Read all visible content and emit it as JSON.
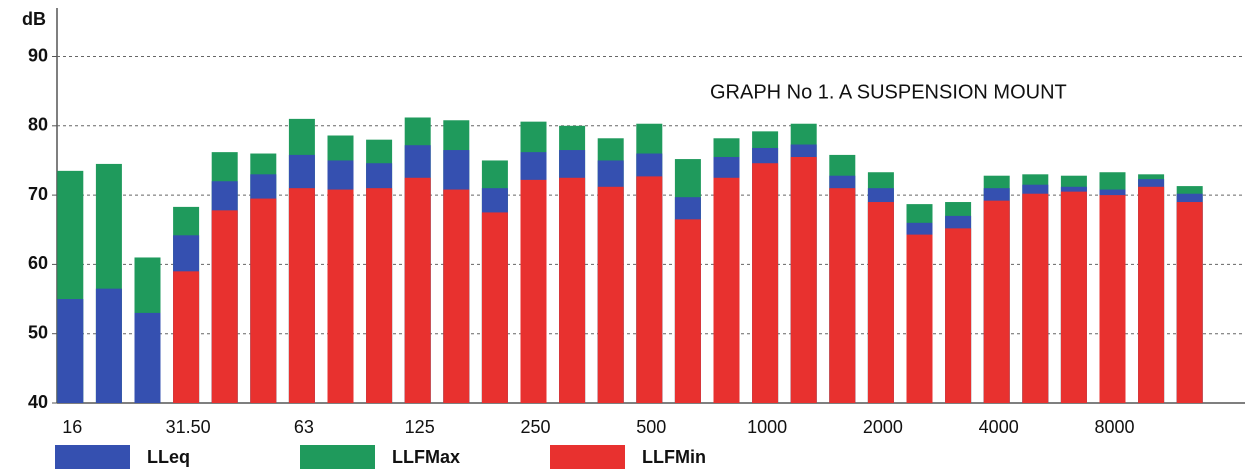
{
  "chart_data": {
    "type": "bar",
    "barmode": "overlay",
    "y_label": "dB",
    "annotation": "GRAPH No 1. A SUSPENSION MOUNT",
    "categories": [
      "16",
      null,
      null,
      "31.50",
      null,
      null,
      "63",
      null,
      null,
      "125",
      null,
      null,
      "250",
      null,
      null,
      "500",
      null,
      null,
      "1000",
      null,
      null,
      "2000",
      null,
      null,
      "4000",
      null,
      null,
      "8000",
      null,
      null
    ],
    "series": [
      {
        "name": "LLeq",
        "color": "#3550b0",
        "values": [
          55,
          56.5,
          53,
          64.2,
          72,
          73,
          75.8,
          75,
          74.6,
          77.2,
          76.5,
          71,
          76.2,
          76.5,
          75,
          76,
          69.7,
          75.5,
          76.8,
          77.3,
          72.8,
          71,
          66,
          67,
          71,
          71.5,
          71.2,
          70.8,
          72.3,
          70.2
        ]
      },
      {
        "name": "LLFMax",
        "color": "#1f9a5c",
        "values": [
          73.5,
          74.5,
          61,
          68.3,
          76.2,
          76,
          81,
          78.6,
          78,
          81.2,
          80.8,
          75,
          80.6,
          80,
          78.2,
          80.3,
          75.2,
          78.2,
          79.2,
          80.3,
          75.8,
          73.3,
          68.7,
          69,
          72.8,
          73,
          72.8,
          73.3,
          73,
          71.3
        ]
      },
      {
        "name": "LLFMin",
        "color": "#e8312f",
        "values": [
          null,
          null,
          null,
          59,
          67.8,
          69.5,
          71,
          70.8,
          71,
          72.5,
          70.8,
          67.5,
          72.2,
          72.5,
          71.2,
          72.7,
          66.5,
          72.5,
          74.6,
          75.5,
          71,
          69,
          64.3,
          65.2,
          69.2,
          70.2,
          70.5,
          70,
          71.2,
          69
        ]
      }
    ],
    "ylim": [
      40,
      97
    ],
    "yticks": [
      40,
      50,
      60,
      70,
      80,
      90
    ],
    "grid": true
  }
}
